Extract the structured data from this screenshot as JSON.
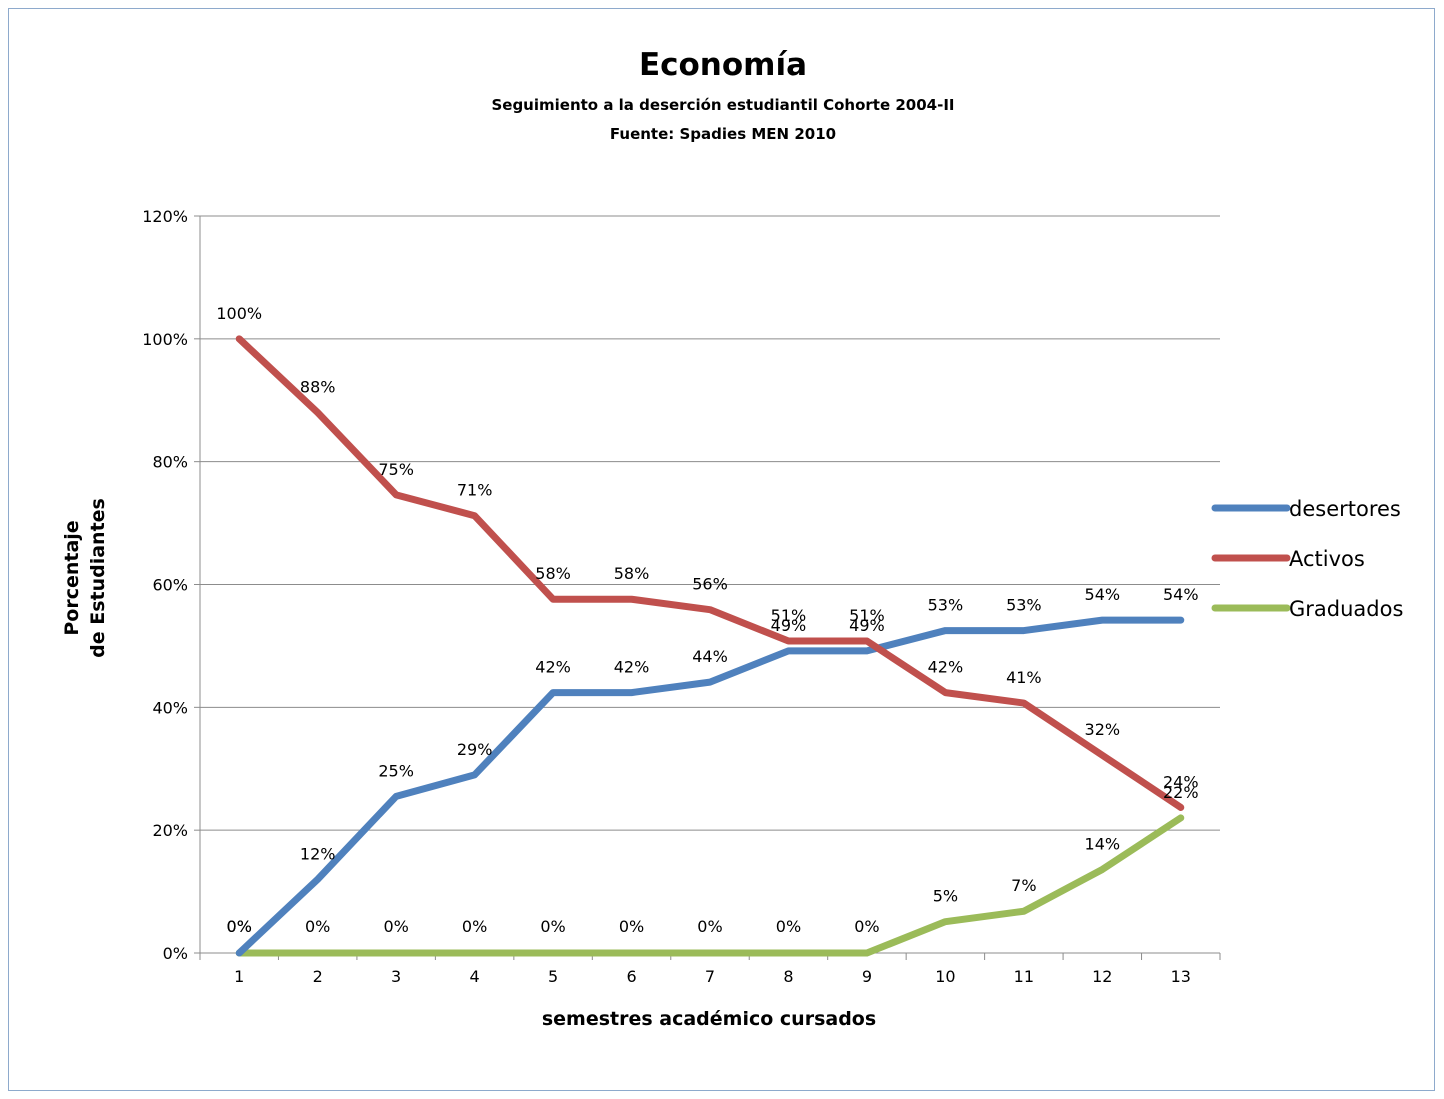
{
  "chart_data": {
    "type": "line",
    "title": "Economía",
    "subtitle_lines": [
      "Seguimiento a la deserción estudiantil Cohorte 2004-II",
      "Fuente: Spadies MEN 2010"
    ],
    "xlabel": "semestres  académico cursados",
    "ylabel_lines": [
      "Porcentaje",
      "de Estudiantes"
    ],
    "categories": [
      "1",
      "2",
      "3",
      "4",
      "5",
      "6",
      "7",
      "8",
      "9",
      "10",
      "11",
      "12",
      "13"
    ],
    "y_ticks": [
      "0%",
      "20%",
      "40%",
      "60%",
      "80%",
      "100%",
      "120%"
    ],
    "ylim": [
      0,
      1.2
    ],
    "grid": true,
    "legend_position": "right",
    "series": [
      {
        "name": "desertores",
        "color": "#4f81bd",
        "values": [
          0,
          0.12,
          0.255,
          0.29,
          0.424,
          0.424,
          0.441,
          0.492,
          0.492,
          0.525,
          0.525,
          0.542,
          0.542
        ],
        "labels": [
          "0%",
          "12%",
          "25%",
          "29%",
          "42%",
          "42%",
          "44%",
          "49%",
          "49%",
          "53%",
          "53%",
          "54%",
          "54%"
        ]
      },
      {
        "name": "Activos",
        "color": "#c0504d",
        "values": [
          1.0,
          0.88,
          0.746,
          0.712,
          0.576,
          0.576,
          0.559,
          0.508,
          0.508,
          0.424,
          0.407,
          0.322,
          0.237
        ],
        "labels": [
          "100%",
          "88%",
          "75%",
          "71%",
          "58%",
          "58%",
          "56%",
          "51%",
          "51%",
          "42%",
          "41%",
          "32%",
          "24%"
        ]
      },
      {
        "name": "Graduados",
        "color": "#9bbb59",
        "values": [
          0,
          0,
          0,
          0,
          0,
          0,
          0,
          0,
          0,
          0.051,
          0.068,
          0.136,
          0.22
        ],
        "labels": [
          "0%",
          "0%",
          "0%",
          "0%",
          "0%",
          "0%",
          "0%",
          "0%",
          "0%",
          "5%",
          "7%",
          "14%",
          "22%"
        ]
      }
    ]
  }
}
